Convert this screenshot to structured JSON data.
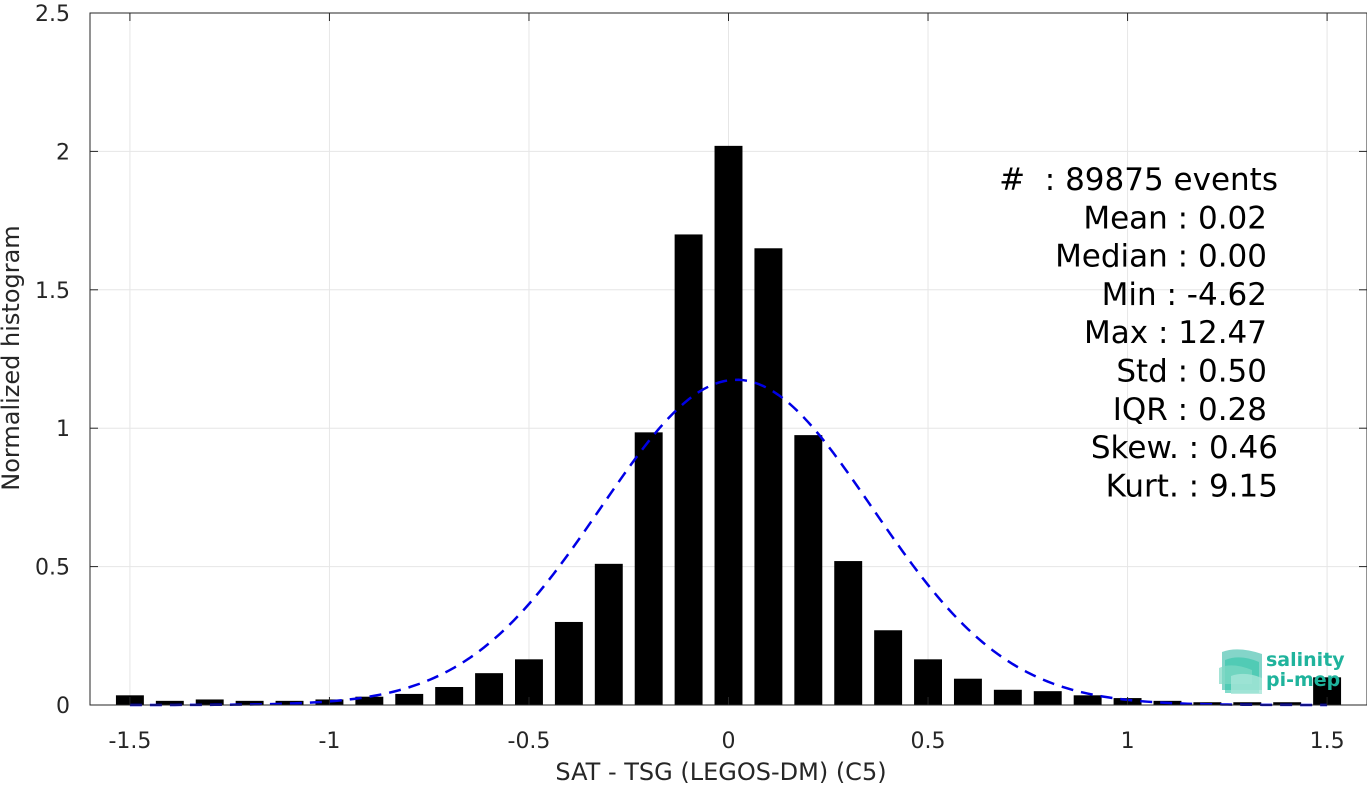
{
  "chart_data": {
    "type": "bar",
    "xlabel": "SAT - TSG (LEGOS-DM) (C5)",
    "ylabel": "Normalized histogram",
    "xlim": [
      -1.6,
      1.6
    ],
    "ylim": [
      0,
      2.5
    ],
    "grid": true,
    "x_ticks": [
      -1.5,
      -1,
      -0.5,
      0,
      0.5,
      1,
      1.5
    ],
    "x_tick_labels": [
      "-1.5",
      "-1",
      "-0.5",
      "0",
      "0.5",
      "1",
      "1.5"
    ],
    "y_ticks": [
      0,
      0.5,
      1,
      1.5,
      2,
      2.5
    ],
    "y_tick_labels": [
      "0",
      "0.5",
      "1",
      "1.5",
      "2",
      "2.5"
    ],
    "bar_width": 0.07,
    "bar_color": "#000000",
    "bins_x": [
      -1.5,
      -1.4,
      -1.3,
      -1.2,
      -1.1,
      -1.0,
      -0.9,
      -0.8,
      -0.7,
      -0.6,
      -0.5,
      -0.4,
      -0.3,
      -0.2,
      -0.1,
      0.0,
      0.1,
      0.2,
      0.3,
      0.4,
      0.5,
      0.6,
      0.7,
      0.8,
      0.9,
      1.0,
      1.1,
      1.2,
      1.3,
      1.4,
      1.5
    ],
    "bins_y": [
      0.035,
      0.015,
      0.02,
      0.015,
      0.015,
      0.02,
      0.03,
      0.04,
      0.065,
      0.115,
      0.165,
      0.3,
      0.51,
      0.985,
      1.7,
      2.02,
      1.65,
      0.975,
      0.52,
      0.27,
      0.165,
      0.095,
      0.055,
      0.05,
      0.035,
      0.025,
      0.015,
      0.01,
      0.01,
      0.01,
      0.1
    ],
    "fit_curve": {
      "style": "dashed",
      "color": "#0000e6",
      "mean": 0.02,
      "std": 0.34,
      "peak": 1.175
    },
    "stats": [
      "#  : 89875 events",
      "Mean : 0.02",
      "Median : 0.00",
      "Min : -4.62",
      "Max : 12.47",
      "Std : 0.50",
      "IQR : 0.28",
      "Skew. : 0.46",
      "Kurt. : 9.15"
    ]
  },
  "logo": {
    "line1": "salinity",
    "line2": "pi-mep",
    "color": "#1fb39c"
  }
}
